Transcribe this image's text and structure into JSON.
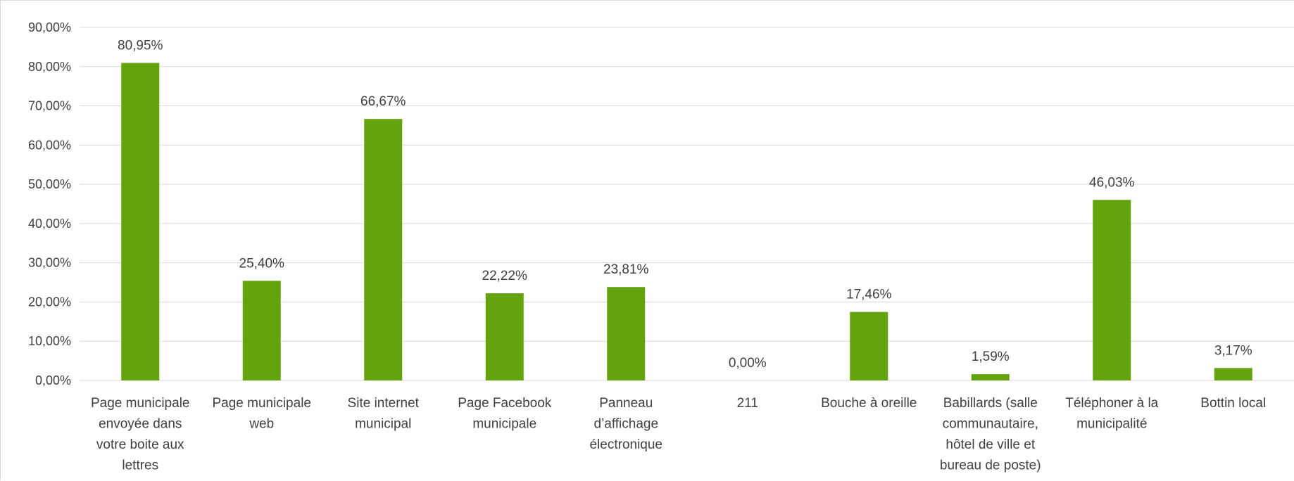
{
  "chart_data": {
    "type": "bar",
    "categories": [
      "Page municipale envoyée dans votre boite aux lettres",
      "Page municipale web",
      "Site internet municipal",
      "Page Facebook municipale",
      "Panneau d’affichage électronique",
      "211",
      "Bouche à oreille",
      "Babillards (salle communautaire, hôtel de ville et bureau de poste)",
      "Téléphoner à la municipalité",
      "Bottin local"
    ],
    "category_label_lines": [
      [
        "Page municipale",
        "envoyée dans",
        "votre boite aux",
        "lettres"
      ],
      [
        "Page municipale",
        "web"
      ],
      [
        "Site internet",
        "municipal"
      ],
      [
        "Page Facebook",
        "municipale"
      ],
      [
        "Panneau",
        "d’affichage",
        "électronique"
      ],
      [
        "211"
      ],
      [
        "Bouche à oreille"
      ],
      [
        "Babillards (salle",
        "communautaire,",
        "hôtel de ville et",
        "bureau de poste)"
      ],
      [
        "Téléphoner à la",
        "municipalité"
      ],
      [
        "Bottin local"
      ]
    ],
    "values": [
      80.95,
      25.4,
      66.67,
      22.22,
      23.81,
      0.0,
      17.46,
      1.59,
      46.03,
      3.17
    ],
    "data_labels": [
      "80,95%",
      "25,40%",
      "66,67%",
      "22,22%",
      "23,81%",
      "0,00%",
      "17,46%",
      "1,59%",
      "46,03%",
      "3,17%"
    ],
    "ylim": [
      0,
      90
    ],
    "y_ticks": [
      0,
      10,
      20,
      30,
      40,
      50,
      60,
      70,
      80,
      90
    ],
    "y_tick_labels": [
      "0,00%",
      "10,00%",
      "20,00%",
      "30,00%",
      "40,00%",
      "50,00%",
      "60,00%",
      "70,00%",
      "80,00%",
      "90,00%"
    ],
    "grid": true,
    "legend": "none",
    "bar_color": "#63a40e",
    "gridline_color": "#d9d9d9",
    "text_color": "#404040"
  }
}
